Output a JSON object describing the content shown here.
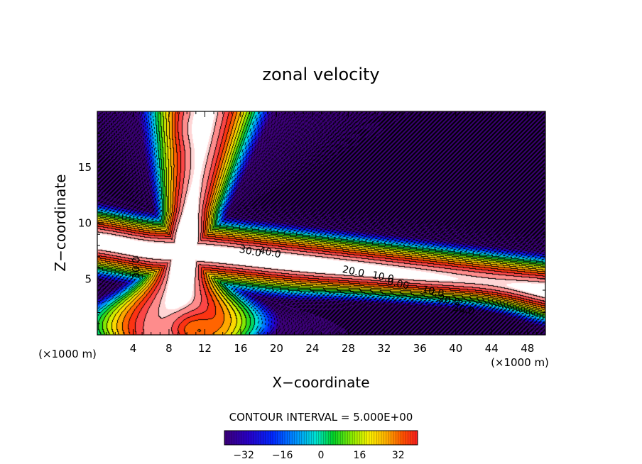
{
  "chart_data": {
    "type": "contour",
    "title": "zonal velocity",
    "xlabel": "X−coordinate",
    "ylabel": "Z−coordinate",
    "x_unit_label": "(×1000 m)",
    "y_unit_label": "(×1000 m)",
    "xlim": [
      0,
      50
    ],
    "ylim": [
      0,
      20
    ],
    "x_ticks": [
      4,
      8,
      12,
      16,
      20,
      24,
      28,
      32,
      36,
      40,
      44,
      48
    ],
    "y_ticks": [
      5,
      10,
      15
    ],
    "contour_interval_text": "CONTOUR INTERVAL = 5.000E+00",
    "contour_labels": [
      {
        "text": "40.0",
        "x": 19.2,
        "z": 7.1
      },
      {
        "text": "30.0",
        "x": 17.0,
        "z": 7.2
      },
      {
        "text": "30.0",
        "x": 4.7,
        "z": 6.0
      },
      {
        "text": "20.0",
        "x": 28.5,
        "z": 5.4
      },
      {
        "text": "10.0",
        "x": 31.8,
        "z": 4.9
      },
      {
        "text": "0.00",
        "x": 33.5,
        "z": 4.3
      },
      {
        "text": "10.0",
        "x": 37.4,
        "z": 3.6
      },
      {
        "text": "20.0",
        "x": 39.2,
        "z": 2.8
      },
      {
        "text": "30.0",
        "x": 40.8,
        "z": 2.0
      }
    ],
    "colorbar": {
      "range": [
        -40,
        40
      ],
      "ticks": [
        "-32",
        "-16",
        "0",
        "16",
        "32"
      ]
    }
  }
}
